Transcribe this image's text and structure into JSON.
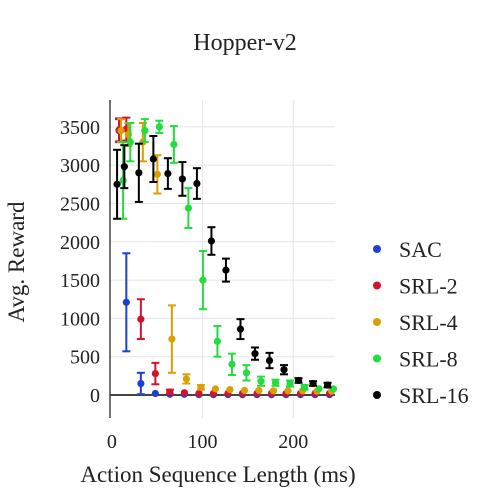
{
  "chart_data": {
    "type": "scatter",
    "title": "Hopper-v2",
    "xlabel": "Action Sequence Length (ms)",
    "ylabel": "Avg. Reward",
    "xlim": [
      -2,
      246
    ],
    "ylim": [
      -300,
      3850
    ],
    "xticks": [
      0,
      100,
      200
    ],
    "yticks": [
      0,
      500,
      1000,
      1500,
      2000,
      2500,
      3000,
      3500
    ],
    "grid": true,
    "legend_position": "right",
    "series": [
      {
        "name": "SAC",
        "color": "#1f3fd1",
        "x": [
          8,
          16,
          32,
          48,
          64,
          80,
          96,
          112,
          128,
          144,
          160,
          176,
          192,
          208,
          224,
          240
        ],
        "y": [
          3450,
          1210,
          150,
          20,
          10,
          10,
          5,
          5,
          5,
          5,
          5,
          5,
          5,
          5,
          5,
          5
        ],
        "err": [
          150,
          640,
          140,
          20,
          10,
          10,
          5,
          5,
          5,
          5,
          5,
          5,
          5,
          5,
          5,
          5
        ]
      },
      {
        "name": "SRL-2",
        "color": "#d1142b",
        "x": [
          8,
          16,
          32,
          48,
          64,
          80,
          96,
          112,
          128,
          144,
          160,
          176,
          192,
          208,
          224,
          240
        ],
        "y": [
          3460,
          3470,
          990,
          280,
          40,
          30,
          20,
          20,
          20,
          20,
          20,
          20,
          20,
          20,
          20,
          20
        ],
        "err": [
          150,
          150,
          260,
          140,
          30,
          20,
          20,
          20,
          20,
          20,
          20,
          20,
          20,
          20,
          20,
          20
        ]
      },
      {
        "name": "SRL-4",
        "color": "#d9a005",
        "x": [
          8,
          16,
          32,
          48,
          64,
          80,
          96,
          112,
          128,
          144,
          160,
          176,
          192,
          208,
          224,
          240
        ],
        "y": [
          3450,
          3400,
          3300,
          2880,
          730,
          210,
          100,
          80,
          70,
          60,
          60,
          55,
          55,
          55,
          50,
          50
        ],
        "err": [
          150,
          150,
          250,
          250,
          440,
          60,
          30,
          20,
          20,
          20,
          20,
          20,
          20,
          20,
          15,
          15
        ],
        "offset": 2
      },
      {
        "name": "SRL-8",
        "color": "#22dd3c",
        "x": [
          8,
          16,
          32,
          48,
          64,
          80,
          96,
          112,
          128,
          144,
          160,
          176,
          192,
          208,
          224,
          240
        ],
        "y": [
          2800,
          3300,
          3450,
          3500,
          3270,
          2440,
          1500,
          700,
          400,
          290,
          180,
          160,
          150,
          100,
          80,
          80
        ],
        "err": [
          500,
          250,
          150,
          80,
          240,
          260,
          380,
          200,
          140,
          100,
          60,
          40,
          40,
          30,
          20,
          20
        ],
        "offset": 4
      },
      {
        "name": "SRL-16",
        "color": "#000000",
        "x": [
          8,
          16,
          32,
          48,
          64,
          80,
          96,
          112,
          128,
          144,
          160,
          176,
          192,
          208,
          224,
          240
        ],
        "y": [
          2750,
          2980,
          2900,
          3080,
          2890,
          2820,
          2760,
          2010,
          1630,
          860,
          540,
          450,
          330,
          190,
          150,
          130
        ],
        "err": [
          450,
          280,
          380,
          300,
          200,
          220,
          200,
          180,
          150,
          130,
          80,
          100,
          60,
          30,
          30,
          30
        ],
        "offset": -2
      }
    ]
  }
}
